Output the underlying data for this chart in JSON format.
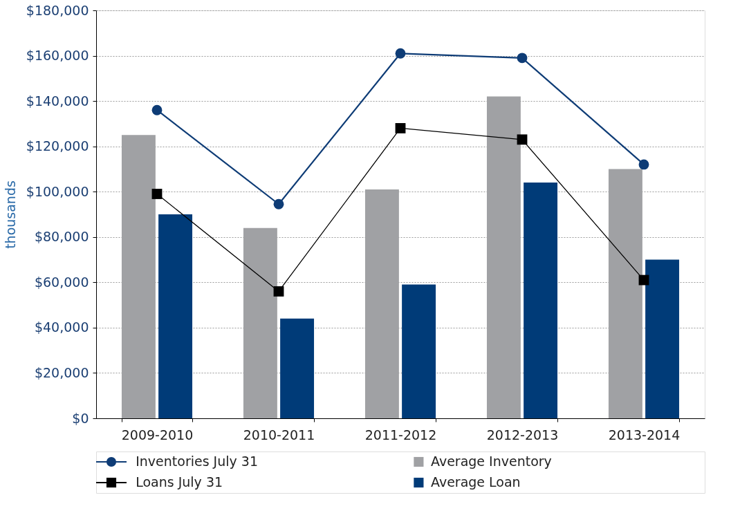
{
  "chart_data": {
    "type": "bar",
    "categories": [
      "2009-2010",
      "2010-2011",
      "2011-2012",
      "2012-2013",
      "2013-2014"
    ],
    "series": [
      {
        "name": "Average Inventory",
        "color": "#a0a1a4",
        "values": [
          125000,
          84000,
          101000,
          142000,
          110000
        ]
      },
      {
        "name": "Average Loan",
        "color": "#003b78",
        "values": [
          90000,
          44000,
          59000,
          104000,
          70000
        ]
      },
      {
        "name": "Inventories July 31",
        "type": "line",
        "marker": "circle",
        "color": "#0e3c76",
        "values": [
          136000,
          94500,
          161000,
          159000,
          112000
        ]
      },
      {
        "name": "Loans July 31",
        "type": "line",
        "marker": "square",
        "color": "#000000",
        "values": [
          99000,
          56000,
          128000,
          123000,
          61000
        ]
      }
    ],
    "ylim": [
      0,
      180000
    ],
    "yticks": [
      {
        "value": 0,
        "label": "$0"
      },
      {
        "value": 20000,
        "label": "$20,000"
      },
      {
        "value": 40000,
        "label": "$40,000"
      },
      {
        "value": 60000,
        "label": "$60,000"
      },
      {
        "value": 80000,
        "label": "$80,000"
      },
      {
        "value": 100000,
        "label": "$100,000"
      },
      {
        "value": 120000,
        "label": "$120,000"
      },
      {
        "value": 140000,
        "label": "$140,000"
      },
      {
        "value": 160000,
        "label": "$160,000"
      },
      {
        "value": 180000,
        "label": "$180,000"
      }
    ],
    "ylabel": "thousands",
    "grid": "y",
    "legend": "bottom"
  }
}
